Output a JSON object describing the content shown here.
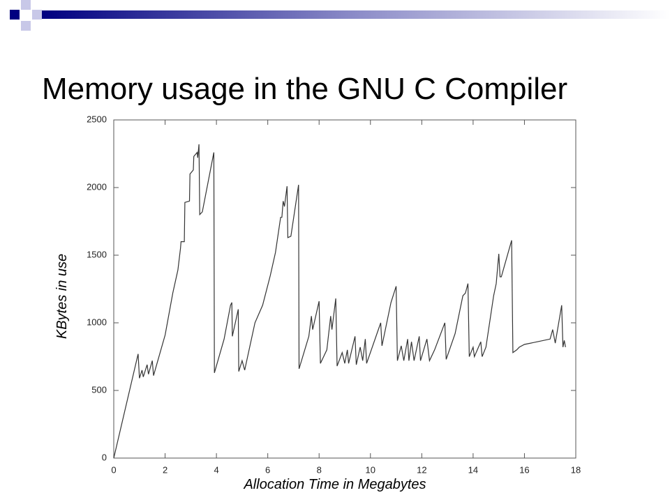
{
  "chart_data": {
    "type": "line",
    "title": "Memory usage in the GNU C Compiler",
    "x_label": "Allocation Time in Megabytes",
    "y_label": "KBytes in use",
    "x": [
      0,
      0.95,
      1.0,
      1.1,
      1.15,
      1.3,
      1.35,
      1.5,
      1.55,
      2.0,
      2.3,
      2.5,
      2.6,
      2.62,
      2.75,
      2.77,
      2.95,
      2.97,
      3.1,
      3.12,
      3.25,
      3.27,
      3.32,
      3.35,
      3.45,
      3.9,
      3.92,
      4.3,
      4.55,
      4.6,
      4.62,
      4.85,
      4.87,
      5.0,
      5.1,
      5.5,
      5.8,
      6.1,
      6.3,
      6.5,
      6.55,
      6.6,
      6.65,
      6.75,
      6.78,
      6.9,
      7.2,
      7.22,
      7.6,
      7.7,
      7.75,
      8.0,
      8.05,
      8.3,
      8.45,
      8.5,
      8.65,
      8.7,
      8.9,
      9.0,
      9.1,
      9.15,
      9.4,
      9.45,
      9.6,
      9.7,
      9.8,
      9.85,
      10.4,
      10.45,
      10.8,
      11.0,
      11.05,
      11.2,
      11.3,
      11.45,
      11.5,
      11.6,
      11.7,
      11.9,
      11.95,
      12.2,
      12.3,
      12.5,
      12.9,
      12.95,
      13.3,
      13.6,
      13.7,
      13.8,
      13.85,
      14.0,
      14.05,
      14.3,
      14.35,
      14.5,
      14.8,
      14.9,
      15.0,
      15.05,
      15.1,
      15.5,
      15.55,
      15.7,
      15.8,
      16.0,
      16.5,
      17.0,
      17.1,
      17.2,
      17.45,
      17.5,
      17.55,
      17.6
    ],
    "series": [
      {
        "color": "#333333",
        "values": [
          0,
          770,
          590,
          650,
          600,
          690,
          620,
          720,
          610,
          910,
          1220,
          1390,
          1550,
          1600,
          1600,
          1890,
          1900,
          2100,
          2130,
          2230,
          2260,
          2220,
          2320,
          1800,
          1820,
          2260,
          630,
          880,
          1130,
          1150,
          900,
          1100,
          640,
          720,
          650,
          1000,
          1130,
          1350,
          1520,
          1780,
          1780,
          1900,
          1860,
          2010,
          1630,
          1640,
          2020,
          660,
          900,
          1050,
          950,
          1160,
          700,
          800,
          1050,
          950,
          1180,
          680,
          780,
          700,
          800,
          700,
          900,
          690,
          820,
          720,
          880,
          700,
          1000,
          830,
          1150,
          1270,
          720,
          830,
          720,
          880,
          720,
          860,
          720,
          900,
          720,
          880,
          720,
          800,
          1000,
          730,
          920,
          1200,
          1220,
          1290,
          750,
          820,
          750,
          860,
          750,
          820,
          1200,
          1290,
          1510,
          1340,
          1340,
          1610,
          780,
          800,
          820,
          840,
          860,
          880,
          950,
          850,
          1130,
          820,
          870,
          820
        ]
      }
    ],
    "xlim": [
      0,
      18
    ],
    "xticks": [
      0,
      2,
      4,
      6,
      8,
      10,
      12,
      14,
      16,
      18
    ],
    "ylim": [
      0,
      2500
    ],
    "yticks": [
      0,
      500,
      1000,
      1500,
      2000,
      2500
    ]
  }
}
